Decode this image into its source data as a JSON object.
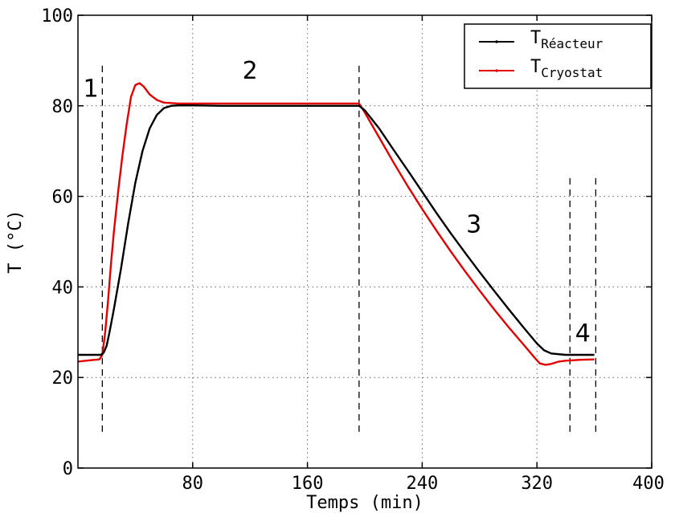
{
  "chart_data": {
    "type": "line",
    "xlabel": "Temps (min)",
    "ylabel": "T (°C)",
    "xlim": [
      0,
      400
    ],
    "ylim": [
      0,
      100
    ],
    "x_ticks": [
      80,
      160,
      240,
      320,
      400
    ],
    "y_ticks": [
      0,
      20,
      40,
      60,
      80,
      100
    ],
    "grid": true,
    "legend_position": "top-right",
    "series": [
      {
        "name_main": "T",
        "name_sub": "Réacteur",
        "color": "#000000",
        "points": [
          [
            0,
            25
          ],
          [
            10,
            25
          ],
          [
            16,
            25
          ],
          [
            18,
            25.5
          ],
          [
            20,
            27
          ],
          [
            22,
            30
          ],
          [
            25,
            35
          ],
          [
            30,
            44
          ],
          [
            35,
            54
          ],
          [
            40,
            63
          ],
          [
            45,
            70
          ],
          [
            50,
            75
          ],
          [
            55,
            78
          ],
          [
            60,
            79.5
          ],
          [
            65,
            80
          ],
          [
            70,
            80.1
          ],
          [
            80,
            80.1
          ],
          [
            100,
            80
          ],
          [
            120,
            80
          ],
          [
            140,
            80
          ],
          [
            160,
            80
          ],
          [
            180,
            80
          ],
          [
            190,
            80
          ],
          [
            196,
            80
          ],
          [
            200,
            79
          ],
          [
            210,
            75
          ],
          [
            220,
            70.3
          ],
          [
            230,
            65.7
          ],
          [
            240,
            61
          ],
          [
            250,
            56.3
          ],
          [
            260,
            51.8
          ],
          [
            270,
            47.5
          ],
          [
            280,
            43.3
          ],
          [
            290,
            39.2
          ],
          [
            300,
            35.2
          ],
          [
            310,
            31.3
          ],
          [
            320,
            27.5
          ],
          [
            325,
            26
          ],
          [
            330,
            25.3
          ],
          [
            340,
            25
          ],
          [
            350,
            25
          ],
          [
            360,
            25
          ]
        ]
      },
      {
        "name_main": "T",
        "name_sub": "Cryostat",
        "color": "#e50000",
        "points": [
          [
            0,
            23.5
          ],
          [
            8,
            23.8
          ],
          [
            15,
            24
          ],
          [
            17,
            25
          ],
          [
            19,
            30
          ],
          [
            21,
            37
          ],
          [
            23,
            45
          ],
          [
            25,
            52
          ],
          [
            28,
            61
          ],
          [
            31,
            69
          ],
          [
            34,
            76
          ],
          [
            37,
            82
          ],
          [
            40,
            84.6
          ],
          [
            43,
            85
          ],
          [
            46,
            84.2
          ],
          [
            50,
            82.5
          ],
          [
            55,
            81.3
          ],
          [
            60,
            80.7
          ],
          [
            70,
            80.5
          ],
          [
            80,
            80.5
          ],
          [
            120,
            80.5
          ],
          [
            160,
            80.5
          ],
          [
            196,
            80.5
          ],
          [
            200,
            78.5
          ],
          [
            210,
            73
          ],
          [
            220,
            67.5
          ],
          [
            230,
            62.2
          ],
          [
            240,
            57.2
          ],
          [
            250,
            52.4
          ],
          [
            260,
            47.8
          ],
          [
            270,
            43.4
          ],
          [
            280,
            39.2
          ],
          [
            290,
            35.1
          ],
          [
            300,
            31.2
          ],
          [
            310,
            27.5
          ],
          [
            318,
            24.5
          ],
          [
            322,
            23.1
          ],
          [
            326,
            22.8
          ],
          [
            330,
            23
          ],
          [
            335,
            23.5
          ],
          [
            340,
            23.7
          ],
          [
            350,
            23.9
          ],
          [
            360,
            24
          ]
        ]
      }
    ],
    "dashed_vlines": [
      {
        "x": 17,
        "y_from": 8,
        "y_to": 89
      },
      {
        "x": 196,
        "y_from": 8,
        "y_to": 89
      },
      {
        "x": 343,
        "y_from": 8,
        "y_to": 65
      },
      {
        "x": 361,
        "y_from": 8,
        "y_to": 65
      }
    ],
    "annotations": [
      {
        "text": "1",
        "x": 9,
        "y": 82
      },
      {
        "text": "2",
        "x": 120,
        "y": 86
      },
      {
        "text": "3",
        "x": 276,
        "y": 52
      },
      {
        "text": "4",
        "x": 352,
        "y": 28
      }
    ]
  }
}
